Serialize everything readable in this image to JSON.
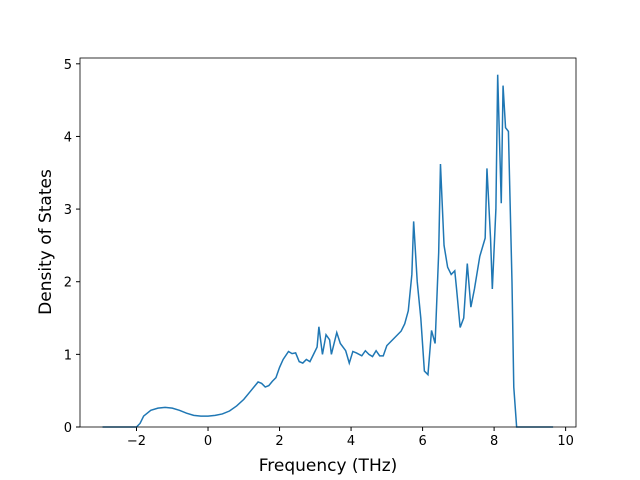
{
  "chart_data": {
    "type": "line",
    "x_label": "Frequency (THz)",
    "y_label": "Density of States",
    "xlim": [
      -3.58,
      10.29
    ],
    "ylim": [
      0,
      5.08
    ],
    "xticks": [
      {
        "value": -2,
        "label": "−2"
      },
      0,
      2,
      4,
      6,
      8,
      10
    ],
    "yticks": [
      0,
      1,
      2,
      3,
      4,
      5
    ],
    "series": [
      {
        "color": "#1f77b4",
        "x": [
          -2.95,
          -2.0,
          -1.9,
          -1.8,
          -1.6,
          -1.4,
          -1.2,
          -1.0,
          -0.8,
          -0.6,
          -0.4,
          -0.2,
          0,
          0.2,
          0.4,
          0.6,
          0.8,
          1.0,
          1.2,
          1.4,
          1.5,
          1.6,
          1.7,
          1.8,
          1.9,
          2.0,
          2.1,
          2.25,
          2.35,
          2.45,
          2.55,
          2.65,
          2.75,
          2.85,
          2.95,
          3.05,
          3.1,
          3.2,
          3.3,
          3.4,
          3.45,
          3.6,
          3.7,
          3.85,
          3.95,
          4.05,
          4.15,
          4.3,
          4.4,
          4.5,
          4.6,
          4.7,
          4.8,
          4.9,
          5.0,
          5.2,
          5.4,
          5.5,
          5.6,
          5.7,
          5.75,
          5.85,
          5.95,
          6.05,
          6.15,
          6.25,
          6.35,
          6.45,
          6.5,
          6.6,
          6.7,
          6.8,
          6.9,
          6.95,
          7.05,
          7.15,
          7.25,
          7.35,
          7.45,
          7.6,
          7.75,
          7.8,
          7.9,
          7.95,
          8.05,
          8.1,
          8.2,
          8.25,
          8.32,
          8.4,
          8.5,
          8.55,
          8.63,
          9.65
        ],
        "values": [
          0,
          0,
          0.05,
          0.15,
          0.23,
          0.26,
          0.27,
          0.26,
          0.23,
          0.19,
          0.16,
          0.15,
          0.15,
          0.16,
          0.18,
          0.22,
          0.29,
          0.38,
          0.5,
          0.62,
          0.6,
          0.55,
          0.57,
          0.63,
          0.68,
          0.82,
          0.93,
          1.04,
          1.01,
          1.02,
          0.9,
          0.88,
          0.93,
          0.9,
          1.0,
          1.1,
          1.38,
          1.0,
          1.27,
          1.2,
          1.0,
          1.3,
          1.15,
          1.05,
          0.88,
          1.04,
          1.02,
          0.98,
          1.05,
          1.0,
          0.97,
          1.05,
          0.98,
          0.98,
          1.12,
          1.22,
          1.32,
          1.42,
          1.6,
          2.1,
          2.83,
          2.0,
          1.5,
          0.77,
          0.72,
          1.33,
          1.15,
          2.4,
          3.62,
          2.5,
          2.2,
          2.1,
          2.15,
          1.9,
          1.37,
          1.5,
          2.25,
          1.65,
          1.9,
          2.35,
          2.6,
          3.56,
          2.6,
          1.9,
          3.0,
          4.85,
          3.08,
          4.7,
          4.12,
          4.07,
          2.0,
          0.55,
          0,
          0
        ]
      }
    ]
  }
}
